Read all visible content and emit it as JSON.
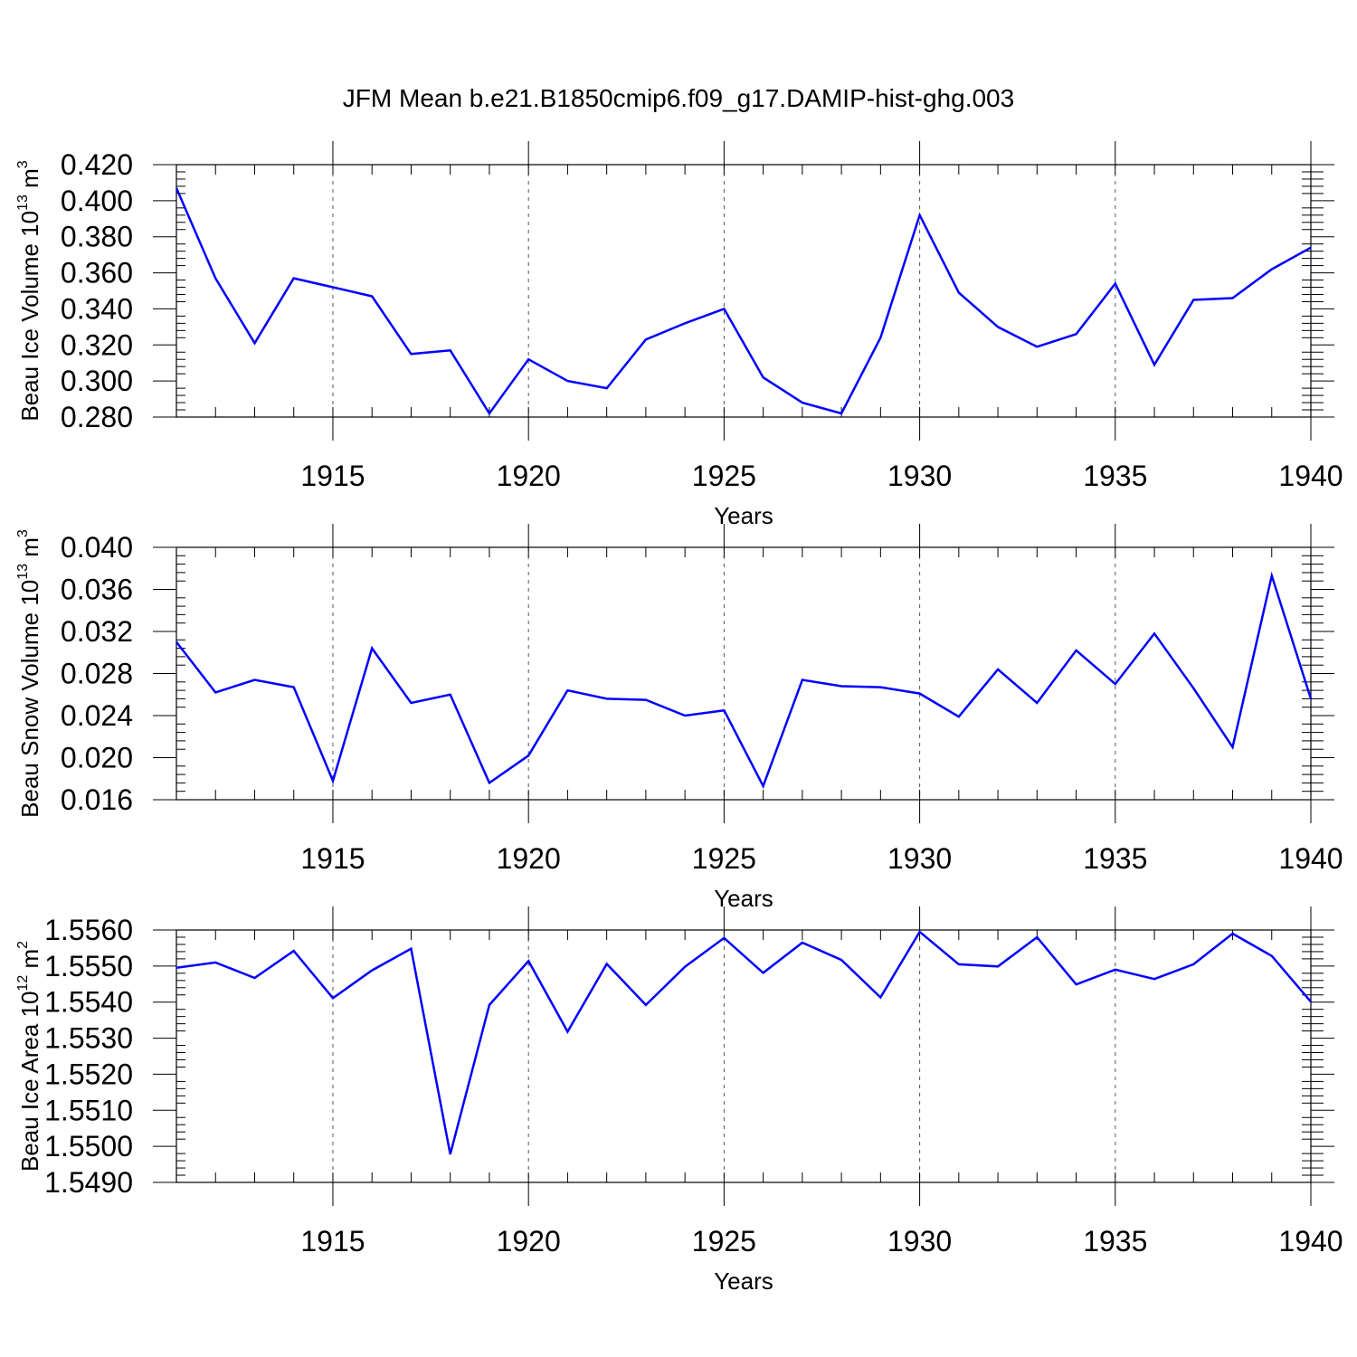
{
  "figure": {
    "title": "JFM Mean b.e21.B1850cmip6.f09_g17.DAMIP-hist-ghg.003"
  },
  "chart_data": [
    {
      "type": "line",
      "ylabel": {
        "text": "Beau Ice Volume 10",
        "exp": "13",
        "unit": " m",
        "unit_exp": "3"
      },
      "xlabel": "Years",
      "xlim": [
        1911,
        1940
      ],
      "ylim": [
        0.28,
        0.42
      ],
      "yticks": [
        0.28,
        0.3,
        0.32,
        0.34,
        0.36,
        0.38,
        0.4,
        0.42
      ],
      "ytick_labels": [
        "0.280",
        "0.300",
        "0.320",
        "0.340",
        "0.360",
        "0.380",
        "0.400",
        "0.420"
      ],
      "xticks": [
        1915,
        1920,
        1925,
        1930,
        1935,
        1940
      ],
      "xtick_labels": [
        "1915",
        "1920",
        "1925",
        "1930",
        "1935",
        "1940"
      ],
      "grid": "vertical dashed at major x ticks",
      "line_color": "#0000ff",
      "x": [
        1911,
        1912,
        1913,
        1914,
        1915,
        1916,
        1917,
        1918,
        1919,
        1920,
        1921,
        1922,
        1923,
        1924,
        1925,
        1926,
        1927,
        1928,
        1929,
        1930,
        1931,
        1932,
        1933,
        1934,
        1935,
        1936,
        1937,
        1938,
        1939,
        1940
      ],
      "y": [
        0.407,
        0.357,
        0.321,
        0.357,
        0.352,
        0.347,
        0.315,
        0.317,
        0.282,
        0.312,
        0.3,
        0.296,
        0.323,
        0.332,
        0.34,
        0.302,
        0.288,
        0.282,
        0.324,
        0.392,
        0.349,
        0.33,
        0.319,
        0.326,
        0.354,
        0.309,
        0.345,
        0.346,
        0.362,
        0.374
      ]
    },
    {
      "type": "line",
      "ylabel": {
        "text": "Beau Snow Volume 10",
        "exp": "13",
        "unit": " m",
        "unit_exp": "3"
      },
      "xlabel": "Years",
      "xlim": [
        1911,
        1940
      ],
      "ylim": [
        0.016,
        0.04
      ],
      "yticks": [
        0.016,
        0.02,
        0.024,
        0.028,
        0.032,
        0.036,
        0.04
      ],
      "ytick_labels": [
        "0.016",
        "0.020",
        "0.024",
        "0.028",
        "0.032",
        "0.036",
        "0.040"
      ],
      "xticks": [
        1915,
        1920,
        1925,
        1930,
        1935,
        1940
      ],
      "xtick_labels": [
        "1915",
        "1920",
        "1925",
        "1930",
        "1935",
        "1940"
      ],
      "grid": "vertical dashed at major x ticks",
      "line_color": "#0000ff",
      "x": [
        1911,
        1912,
        1913,
        1914,
        1915,
        1916,
        1917,
        1918,
        1919,
        1920,
        1921,
        1922,
        1923,
        1924,
        1925,
        1926,
        1927,
        1928,
        1929,
        1930,
        1931,
        1932,
        1933,
        1934,
        1935,
        1936,
        1937,
        1938,
        1939,
        1940
      ],
      "y": [
        0.031,
        0.0262,
        0.0274,
        0.0267,
        0.0178,
        0.0304,
        0.0252,
        0.026,
        0.0176,
        0.0202,
        0.0264,
        0.0256,
        0.0255,
        0.024,
        0.0245,
        0.0173,
        0.0274,
        0.0268,
        0.0267,
        0.0261,
        0.0239,
        0.0284,
        0.0252,
        0.0302,
        0.027,
        0.0318,
        0.0266,
        0.021,
        0.0373,
        0.0256
      ]
    },
    {
      "type": "line",
      "ylabel": {
        "text": "Beau Ice Area 10",
        "exp": "12",
        "unit": " m",
        "unit_exp": "2"
      },
      "xlabel": "Years",
      "xlim": [
        1911,
        1940
      ],
      "ylim": [
        1.549,
        1.556
      ],
      "yticks": [
        1.549,
        1.55,
        1.551,
        1.552,
        1.553,
        1.554,
        1.555,
        1.556
      ],
      "ytick_labels": [
        "1.5490",
        "1.5500",
        "1.5510",
        "1.5520",
        "1.5530",
        "1.5540",
        "1.5550",
        "1.5560"
      ],
      "xticks": [
        1915,
        1920,
        1925,
        1930,
        1935,
        1940
      ],
      "xtick_labels": [
        "1915",
        "1920",
        "1925",
        "1930",
        "1935",
        "1940"
      ],
      "grid": "vertical dashed at major x ticks",
      "line_color": "#0000ff",
      "x": [
        1911,
        1912,
        1913,
        1914,
        1915,
        1916,
        1917,
        1918,
        1919,
        1920,
        1921,
        1922,
        1923,
        1924,
        1925,
        1926,
        1927,
        1928,
        1929,
        1930,
        1931,
        1932,
        1933,
        1934,
        1935,
        1936,
        1937,
        1938,
        1939,
        1940
      ],
      "y": [
        1.55495,
        1.5551,
        1.55467,
        1.55542,
        1.55411,
        1.55488,
        1.55548,
        1.54978,
        1.55392,
        1.55514,
        1.55318,
        1.55506,
        1.55392,
        1.55498,
        1.55578,
        1.55481,
        1.55565,
        1.55517,
        1.55413,
        1.55595,
        1.55505,
        1.55499,
        1.5558,
        1.55449,
        1.5549,
        1.55464,
        1.55505,
        1.5559,
        1.55528,
        1.55401
      ]
    }
  ]
}
